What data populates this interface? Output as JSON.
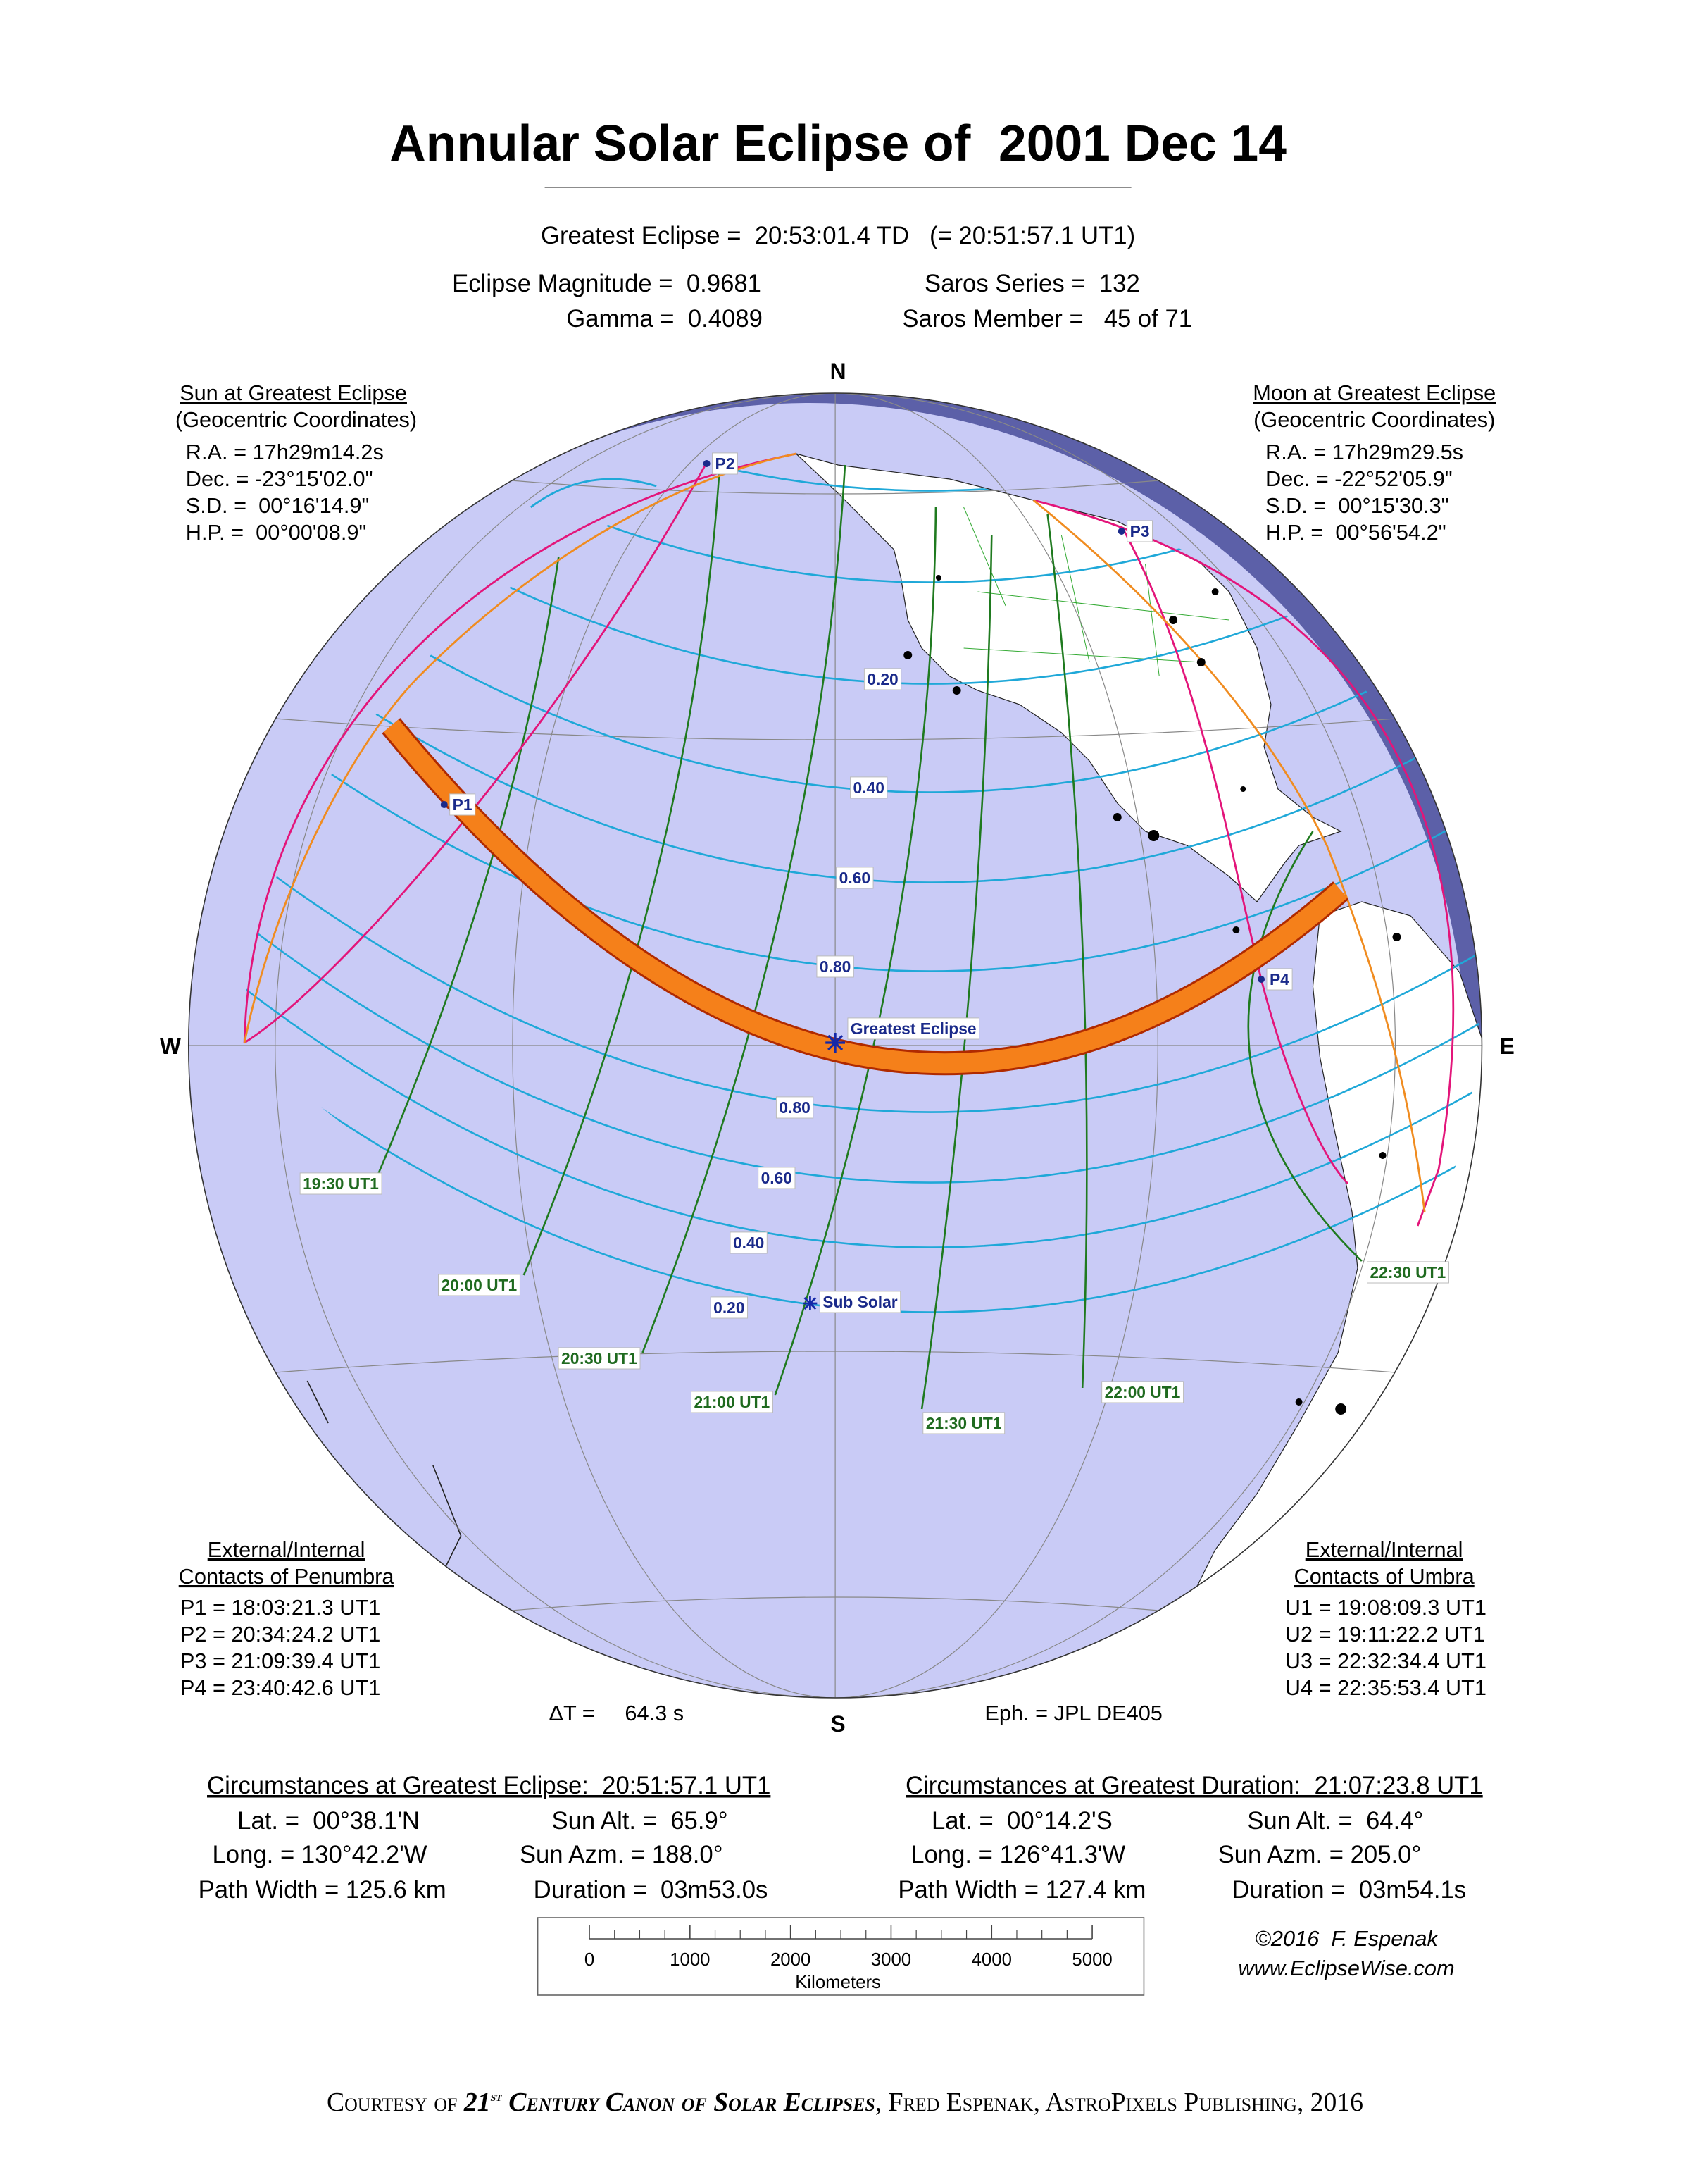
{
  "title": "Annular Solar Eclipse of  2001 Dec 14",
  "greatest_eclipse": "Greatest Eclipse =  20:53:01.4 TD   (= 20:51:57.1 UT1)",
  "parameters": {
    "magnitude": "Eclipse Magnitude =  0.9681",
    "gamma": "Gamma =  0.4089",
    "saros_series": "Saros Series =  132",
    "saros_member": "Saros Member =   45 of 71"
  },
  "sun": {
    "heading": "Sun at Greatest Eclipse",
    "subheading": "(Geocentric Coordinates)",
    "lines": [
      "R.A. = 17h29m14.2s",
      "Dec. = -23°15'02.0\"",
      "S.D. =  00°16'14.9\"",
      "H.P. =  00°00'08.9\""
    ]
  },
  "moon": {
    "heading": "Moon at Greatest Eclipse",
    "subheading": "(Geocentric Coordinates)",
    "lines": [
      "R.A. = 17h29m29.5s",
      "Dec. = -22°52'05.9\"",
      "S.D. =  00°15'30.3\"",
      "H.P. =  00°56'54.2\""
    ]
  },
  "compass": {
    "north": "N",
    "south": "S",
    "east": "E",
    "west": "W"
  },
  "penumbra": {
    "heading": "External/Internal",
    "subheading": "Contacts of Penumbra",
    "lines": [
      "P1 = 18:03:21.3 UT1",
      "P2 = 20:34:24.2 UT1",
      "P3 = 21:09:39.4 UT1",
      "P4 = 23:40:42.6 UT1"
    ]
  },
  "umbra": {
    "heading": "External/Internal",
    "subheading": "Contacts of Umbra",
    "lines": [
      "U1 = 19:08:09.3 UT1",
      "U2 = 19:11:22.2 UT1",
      "U3 = 22:32:34.4 UT1",
      "U4 = 22:35:53.4 UT1"
    ]
  },
  "delta_t": "ΔT =     64.3 s",
  "ephemeris": "Eph. = JPL DE405",
  "map_labels": {
    "contacts": [
      "P1",
      "P2",
      "P3",
      "P4"
    ],
    "magnitude_north": [
      "0.20",
      "0.40",
      "0.60",
      "0.80"
    ],
    "magnitude_south": [
      "0.80",
      "0.60",
      "0.40",
      "0.20"
    ],
    "times": [
      "19:30 UT1",
      "20:00 UT1",
      "20:30 UT1",
      "21:00 UT1",
      "21:30 UT1",
      "22:00 UT1",
      "22:30 UT1"
    ],
    "greatest_eclipse": "Greatest Eclipse",
    "sub_solar": "Sub Solar"
  },
  "circumstances_greatest_eclipse": {
    "heading": "Circumstances at Greatest Eclipse:  20:51:57.1 UT1",
    "lat": "Lat. =  00°38.1'N",
    "sun_alt": "Sun Alt. =  65.9°",
    "long": "Long. = 130°42.2'W",
    "sun_azm": "Sun Azm. = 188.0°",
    "path_width": "Path Width = 125.6 km",
    "duration": "Duration =  03m53.0s"
  },
  "circumstances_greatest_duration": {
    "heading": "Circumstances at Greatest Duration:  21:07:23.8 UT1",
    "lat": "Lat. =  00°14.2'S",
    "sun_alt": "Sun Alt. =  64.4°",
    "long": "Long. = 126°41.3'W",
    "sun_azm": "Sun Azm. = 205.0°",
    "path_width": "Path Width = 127.4 km",
    "duration": "Duration =  03m54.1s"
  },
  "scale_bar": {
    "ticks": [
      "0",
      "1000",
      "2000",
      "3000",
      "4000",
      "5000"
    ],
    "unit": "Kilometers"
  },
  "credit": {
    "copyright": "©2016  F. Espenak",
    "website": "www.EclipseWise.com"
  },
  "courtesy": [
    "Courtesy of",
    "21",
    "st",
    "Century Canon of Solar Eclipses",
    ", Fred Espenak, AstroPixels Publishing, 2016"
  ]
}
